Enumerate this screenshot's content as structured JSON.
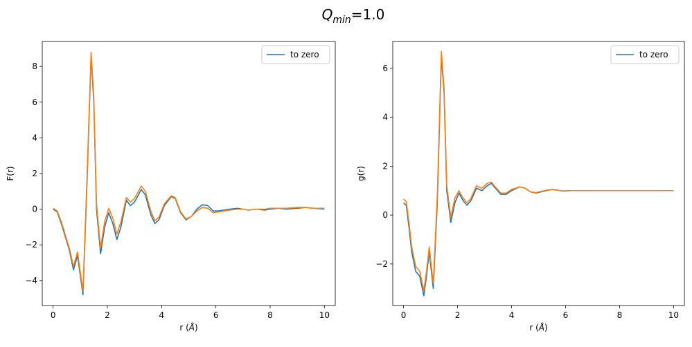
{
  "figure": {
    "suptitle_main": "Q",
    "suptitle_sub": "min",
    "suptitle_rest": "=1.0"
  },
  "colors": {
    "blue": "#1f77b4",
    "orange": "#ff7f0e"
  },
  "chart_data": [
    {
      "type": "line",
      "xlabel_main": "r (",
      "xlabel_unit": "Å",
      "xlabel_end": ")",
      "ylabel": "F(r)",
      "xlim": [
        -0.4,
        10.4
      ],
      "ylim": [
        -5.4,
        9.4
      ],
      "xticks": [
        0,
        2,
        4,
        6,
        8,
        10
      ],
      "yticks": [
        -4,
        -2,
        0,
        2,
        4,
        6,
        8
      ],
      "legend": {
        "label": "to zero",
        "placement": "upper-right"
      },
      "series": [
        {
          "name": "to zero",
          "color": "#1f77b4",
          "points": [
            [
              0,
              0
            ],
            [
              0.15,
              -0.15
            ],
            [
              0.3,
              -0.8
            ],
            [
              0.5,
              -1.8
            ],
            [
              0.6,
              -2.3
            ],
            [
              0.75,
              -3.4
            ],
            [
              0.9,
              -2.6
            ],
            [
              1.1,
              -4.8
            ],
            [
              1.25,
              1.5
            ],
            [
              1.4,
              8.6
            ],
            [
              1.5,
              6.0
            ],
            [
              1.6,
              0
            ],
            [
              1.75,
              -2.5
            ],
            [
              1.9,
              -1.0
            ],
            [
              2.05,
              -0.2
            ],
            [
              2.2,
              -0.8
            ],
            [
              2.35,
              -1.7
            ],
            [
              2.5,
              -1.0
            ],
            [
              2.7,
              0.5
            ],
            [
              2.85,
              0.2
            ],
            [
              3.0,
              0.4
            ],
            [
              3.25,
              1.1
            ],
            [
              3.4,
              0.8
            ],
            [
              3.6,
              -0.3
            ],
            [
              3.75,
              -0.8
            ],
            [
              3.9,
              -0.6
            ],
            [
              4.1,
              0.2
            ],
            [
              4.35,
              0.7
            ],
            [
              4.5,
              0.6
            ],
            [
              4.7,
              -0.2
            ],
            [
              4.9,
              -0.6
            ],
            [
              5.1,
              -0.4
            ],
            [
              5.3,
              0
            ],
            [
              5.5,
              0.25
            ],
            [
              5.7,
              0.2
            ],
            [
              5.9,
              -0.1
            ],
            [
              6.1,
              -0.1
            ],
            [
              6.3,
              -0.05
            ],
            [
              6.5,
              0
            ],
            [
              6.8,
              0.05
            ],
            [
              7.0,
              0
            ],
            [
              7.2,
              -0.05
            ],
            [
              7.5,
              0
            ],
            [
              7.8,
              -0.05
            ],
            [
              8.0,
              0
            ],
            [
              8.3,
              0.05
            ],
            [
              8.6,
              0
            ],
            [
              9.0,
              0.05
            ],
            [
              9.3,
              0.1
            ],
            [
              9.6,
              0.05
            ],
            [
              10.0,
              0
            ]
          ]
        },
        {
          "name": "",
          "color": "#ff7f0e",
          "points": [
            [
              0,
              0.05
            ],
            [
              0.15,
              -0.1
            ],
            [
              0.3,
              -0.7
            ],
            [
              0.5,
              -1.7
            ],
            [
              0.6,
              -2.2
            ],
            [
              0.75,
              -3.2
            ],
            [
              0.9,
              -2.4
            ],
            [
              1.1,
              -4.6
            ],
            [
              1.25,
              1.8
            ],
            [
              1.4,
              8.8
            ],
            [
              1.5,
              6.3
            ],
            [
              1.6,
              0.3
            ],
            [
              1.75,
              -2.2
            ],
            [
              1.9,
              -0.7
            ],
            [
              2.05,
              0.05
            ],
            [
              2.2,
              -0.5
            ],
            [
              2.35,
              -1.4
            ],
            [
              2.5,
              -0.7
            ],
            [
              2.7,
              0.65
            ],
            [
              2.85,
              0.4
            ],
            [
              3.0,
              0.6
            ],
            [
              3.25,
              1.3
            ],
            [
              3.4,
              1.0
            ],
            [
              3.6,
              -0.1
            ],
            [
              3.75,
              -0.65
            ],
            [
              3.9,
              -0.45
            ],
            [
              4.1,
              0.3
            ],
            [
              4.35,
              0.75
            ],
            [
              4.5,
              0.65
            ],
            [
              4.7,
              -0.15
            ],
            [
              4.9,
              -0.55
            ],
            [
              5.1,
              -0.4
            ],
            [
              5.3,
              -0.1
            ],
            [
              5.5,
              0.1
            ],
            [
              5.7,
              0.05
            ],
            [
              5.9,
              -0.2
            ],
            [
              6.1,
              -0.15
            ],
            [
              6.3,
              -0.1
            ],
            [
              6.5,
              -0.05
            ],
            [
              6.8,
              0
            ],
            [
              7.0,
              0
            ],
            [
              7.2,
              -0.05
            ],
            [
              7.5,
              0
            ],
            [
              7.8,
              0
            ],
            [
              8.0,
              0.05
            ],
            [
              8.3,
              0.05
            ],
            [
              8.6,
              0.05
            ],
            [
              9.0,
              0.1
            ],
            [
              9.3,
              0.1
            ],
            [
              9.6,
              0.05
            ],
            [
              10.0,
              0.05
            ]
          ]
        }
      ]
    },
    {
      "type": "line",
      "xlabel_main": "r (",
      "xlabel_unit": "Å",
      "xlabel_end": ")",
      "ylabel": "g(r)",
      "xlim": [
        -0.4,
        10.4
      ],
      "ylim": [
        -3.7,
        7.1
      ],
      "xticks": [
        0,
        2,
        4,
        6,
        8,
        10
      ],
      "yticks": [
        -2,
        0,
        2,
        4,
        6
      ],
      "legend": {
        "label": "to zero",
        "placement": "upper-right"
      },
      "series": [
        {
          "name": "to zero",
          "color": "#1f77b4",
          "points": [
            [
              0,
              0.5
            ],
            [
              0.1,
              0.4
            ],
            [
              0.2,
              -0.5
            ],
            [
              0.3,
              -1.5
            ],
            [
              0.45,
              -2.3
            ],
            [
              0.6,
              -2.5
            ],
            [
              0.75,
              -3.3
            ],
            [
              0.85,
              -2.5
            ],
            [
              0.95,
              -1.5
            ],
            [
              1.1,
              -3.0
            ],
            [
              1.25,
              0.5
            ],
            [
              1.4,
              6.5
            ],
            [
              1.5,
              5.0
            ],
            [
              1.6,
              1.0
            ],
            [
              1.75,
              -0.3
            ],
            [
              1.9,
              0.5
            ],
            [
              2.05,
              0.9
            ],
            [
              2.2,
              0.6
            ],
            [
              2.35,
              0.4
            ],
            [
              2.5,
              0.6
            ],
            [
              2.7,
              1.1
            ],
            [
              2.9,
              1.0
            ],
            [
              3.1,
              1.2
            ],
            [
              3.25,
              1.3
            ],
            [
              3.4,
              1.1
            ],
            [
              3.6,
              0.85
            ],
            [
              3.8,
              0.85
            ],
            [
              4.0,
              1.0
            ],
            [
              4.3,
              1.15
            ],
            [
              4.5,
              1.1
            ],
            [
              4.7,
              0.95
            ],
            [
              4.9,
              0.9
            ],
            [
              5.1,
              0.95
            ],
            [
              5.3,
              1.0
            ],
            [
              5.5,
              1.05
            ],
            [
              5.7,
              1.02
            ],
            [
              5.9,
              0.98
            ],
            [
              6.2,
              1.0
            ],
            [
              6.5,
              1.0
            ],
            [
              7.0,
              1.0
            ],
            [
              7.5,
              1.0
            ],
            [
              8.0,
              1.0
            ],
            [
              8.5,
              1.0
            ],
            [
              9.0,
              1.0
            ],
            [
              9.5,
              1.0
            ],
            [
              10.0,
              1.0
            ]
          ]
        },
        {
          "name": "",
          "color": "#ff7f0e",
          "points": [
            [
              0,
              0.65
            ],
            [
              0.1,
              0.55
            ],
            [
              0.2,
              -0.3
            ],
            [
              0.3,
              -1.3
            ],
            [
              0.45,
              -2.1
            ],
            [
              0.6,
              -2.3
            ],
            [
              0.75,
              -3.1
            ],
            [
              0.85,
              -2.3
            ],
            [
              0.95,
              -1.3
            ],
            [
              1.1,
              -2.8
            ],
            [
              1.25,
              0.8
            ],
            [
              1.4,
              6.7
            ],
            [
              1.5,
              5.2
            ],
            [
              1.6,
              1.2
            ],
            [
              1.75,
              -0.1
            ],
            [
              1.9,
              0.7
            ],
            [
              2.05,
              1.0
            ],
            [
              2.2,
              0.7
            ],
            [
              2.35,
              0.5
            ],
            [
              2.5,
              0.7
            ],
            [
              2.7,
              1.2
            ],
            [
              2.9,
              1.1
            ],
            [
              3.1,
              1.3
            ],
            [
              3.25,
              1.35
            ],
            [
              3.4,
              1.15
            ],
            [
              3.6,
              0.9
            ],
            [
              3.8,
              0.9
            ],
            [
              4.0,
              1.05
            ],
            [
              4.3,
              1.15
            ],
            [
              4.5,
              1.1
            ],
            [
              4.7,
              0.95
            ],
            [
              4.9,
              0.92
            ],
            [
              5.1,
              0.97
            ],
            [
              5.3,
              1.02
            ],
            [
              5.5,
              1.05
            ],
            [
              5.7,
              1.02
            ],
            [
              5.9,
              0.99
            ],
            [
              6.2,
              1.0
            ],
            [
              6.5,
              1.0
            ],
            [
              7.0,
              1.0
            ],
            [
              7.5,
              1.0
            ],
            [
              8.0,
              1.0
            ],
            [
              8.5,
              1.0
            ],
            [
              9.0,
              1.0
            ],
            [
              9.5,
              1.0
            ],
            [
              10.0,
              1.0
            ]
          ]
        }
      ]
    }
  ]
}
